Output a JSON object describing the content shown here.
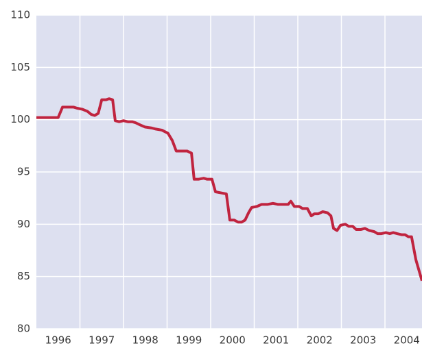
{
  "chart_data": {
    "type": "line",
    "x": [
      1996.0,
      1996.5,
      1996.6,
      1996.85,
      1996.93,
      1997.05,
      1997.17,
      1997.26,
      1997.34,
      1997.42,
      1997.5,
      1997.6,
      1997.67,
      1997.75,
      1997.81,
      1997.9,
      1998.0,
      1998.1,
      1998.2,
      1998.28,
      1998.38,
      1998.49,
      1998.65,
      1998.74,
      1998.88,
      1999.02,
      1999.12,
      1999.21,
      1999.39,
      1999.46,
      1999.56,
      1999.62,
      1999.72,
      1999.84,
      1999.92,
      2000.03,
      2000.11,
      2000.24,
      2000.36,
      2000.44,
      2000.54,
      2000.63,
      2000.71,
      2000.79,
      2000.87,
      2000.94,
      2001.06,
      2001.17,
      2001.31,
      2001.43,
      2001.54,
      2001.7,
      2001.78,
      2001.84,
      2001.92,
      2002.03,
      2002.11,
      2002.22,
      2002.31,
      2002.38,
      2002.47,
      2002.57,
      2002.68,
      2002.76,
      2002.82,
      2002.9,
      2002.98,
      2003.09,
      2003.17,
      2003.26,
      2003.34,
      2003.45,
      2003.54,
      2003.64,
      2003.75,
      2003.83,
      2003.92,
      2004.02,
      2004.11,
      2004.19,
      2004.28,
      2004.38,
      2004.46,
      2004.54,
      2004.61,
      2004.71,
      2004.85
    ],
    "series": [
      {
        "color": "#c0243f",
        "values": [
          100.2,
          100.2,
          101.2,
          101.2,
          101.1,
          101.0,
          100.8,
          100.5,
          100.4,
          100.6,
          101.9,
          101.9,
          102.0,
          101.9,
          99.9,
          99.8,
          99.9,
          99.8,
          99.8,
          99.7,
          99.5,
          99.3,
          99.2,
          99.1,
          99.0,
          98.7,
          98.0,
          97.0,
          97.0,
          97.0,
          96.8,
          94.3,
          94.3,
          94.4,
          94.3,
          94.3,
          93.1,
          93.0,
          92.9,
          90.4,
          90.4,
          90.2,
          90.2,
          90.4,
          91.1,
          91.6,
          91.7,
          91.9,
          91.9,
          92.0,
          91.9,
          91.9,
          91.9,
          92.2,
          91.7,
          91.7,
          91.5,
          91.5,
          90.8,
          91.0,
          91.0,
          91.2,
          91.1,
          90.8,
          89.6,
          89.4,
          89.9,
          90.0,
          89.8,
          89.8,
          89.5,
          89.5,
          89.6,
          89.4,
          89.3,
          89.1,
          89.1,
          89.2,
          89.1,
          89.2,
          89.1,
          89.0,
          89.0,
          88.8,
          88.8,
          86.6,
          84.6
        ]
      }
    ],
    "xlim": [
      1996.0,
      2004.85
    ],
    "xticks": [
      {
        "value": 1996.5,
        "label": "1996"
      },
      {
        "value": 1997.5,
        "label": "1997"
      },
      {
        "value": 1998.5,
        "label": "1998"
      },
      {
        "value": 1999.5,
        "label": "1999"
      },
      {
        "value": 2000.5,
        "label": "2000"
      },
      {
        "value": 2001.5,
        "label": "2001"
      },
      {
        "value": 2002.5,
        "label": "2002"
      },
      {
        "value": 2003.5,
        "label": "2003"
      },
      {
        "value": 2004.5,
        "label": "2004"
      }
    ],
    "xgrid": [
      1997,
      1998,
      1999,
      2000,
      2001,
      2002,
      2003,
      2004
    ],
    "ylim": [
      80,
      110
    ],
    "yticks": [
      80,
      85,
      90,
      95,
      100,
      105,
      110
    ],
    "grid": true
  }
}
